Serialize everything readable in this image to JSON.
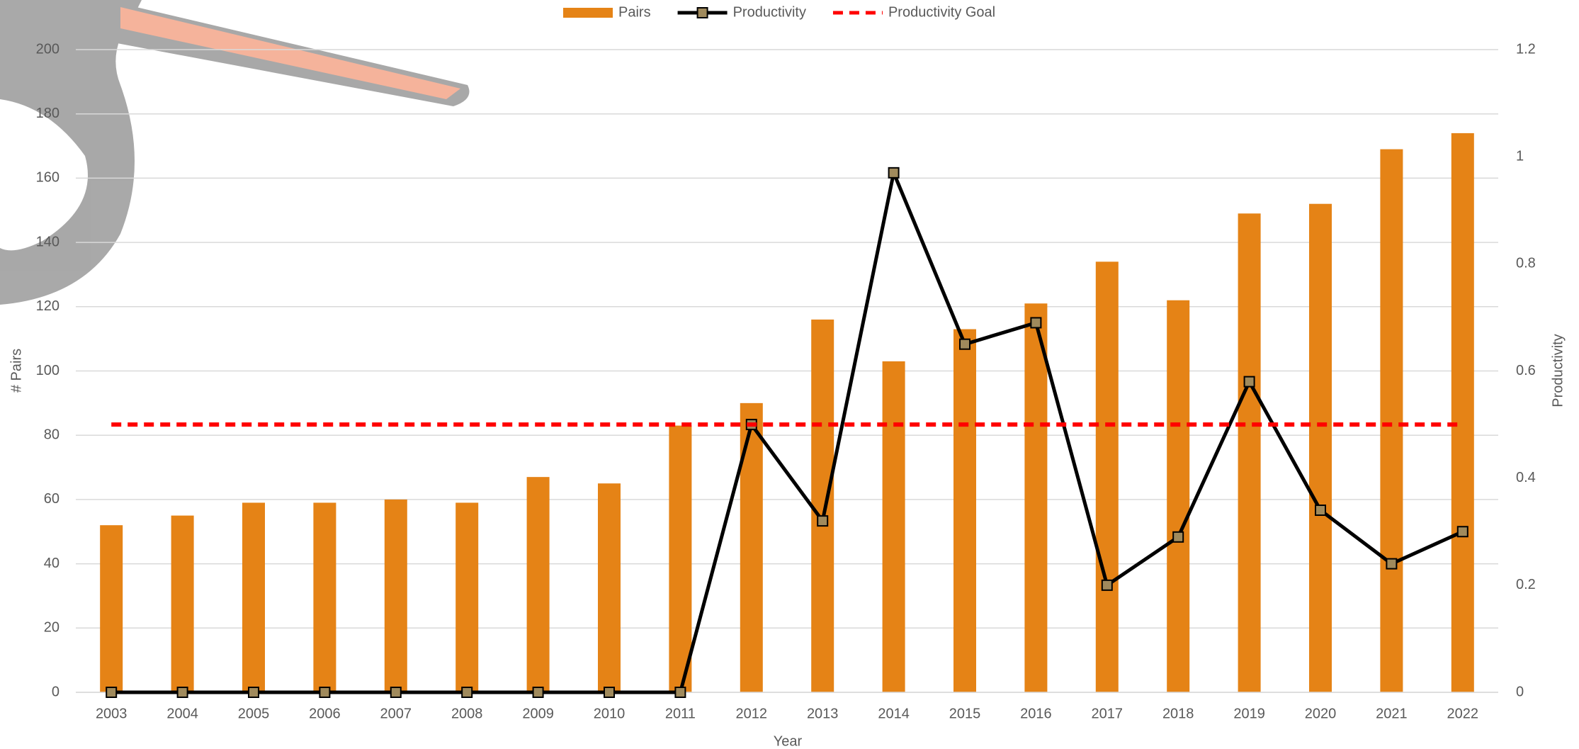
{
  "chart_data": {
    "type": "bar",
    "x_label": "Year",
    "y_label": "# Pairs",
    "y2_label": "Productivity",
    "categories": [
      "2003",
      "2004",
      "2005",
      "2006",
      "2007",
      "2008",
      "2009",
      "2010",
      "2011",
      "2012",
      "2013",
      "2014",
      "2015",
      "2016",
      "2017",
      "2018",
      "2019",
      "2020",
      "2021",
      "2022"
    ],
    "series": [
      {
        "name": "Pairs",
        "type": "bar",
        "color": "#e58316",
        "values": [
          52,
          55,
          59,
          59,
          60,
          59,
          67,
          65,
          83,
          90,
          116,
          103,
          113,
          121,
          134,
          122,
          149,
          152,
          169,
          174
        ]
      },
      {
        "name": "Productivity",
        "type": "line",
        "axis": "y2",
        "color": "#000000",
        "marker": "square",
        "marker_color": "#a08a5c",
        "values": [
          0,
          0,
          0,
          0,
          0,
          0,
          0,
          0,
          0,
          0.5,
          0.32,
          0.97,
          0.65,
          0.69,
          0.2,
          0.29,
          0.58,
          0.34,
          0.24,
          0.3
        ]
      },
      {
        "name": "Productivity Goal",
        "type": "line",
        "axis": "y2",
        "color": "#ff0000",
        "dashed": true,
        "values": [
          0.5,
          0.5,
          0.5,
          0.5,
          0.5,
          0.5,
          0.5,
          0.5,
          0.5,
          0.5,
          0.5,
          0.5,
          0.5,
          0.5,
          0.5,
          0.5,
          0.5,
          0.5,
          0.5,
          0.5
        ]
      }
    ],
    "ylim": [
      0,
      200
    ],
    "yticks": [
      0,
      20,
      40,
      60,
      80,
      100,
      120,
      140,
      160,
      180,
      200
    ],
    "y2lim": [
      0,
      1.2
    ],
    "y2ticks": [
      0,
      0.2,
      0.4,
      0.6,
      0.8,
      1,
      1.2
    ],
    "grid": true,
    "legend": "top"
  }
}
